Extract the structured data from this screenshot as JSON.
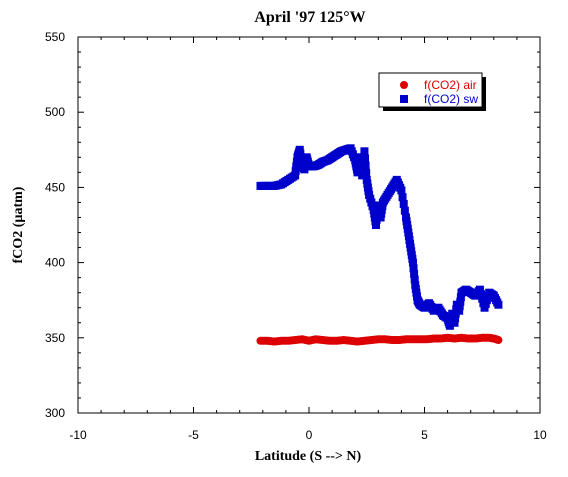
{
  "chart_data": {
    "type": "scatter",
    "title": "April '97 125°W",
    "xlabel": "Latitude (S --> N)",
    "ylabel": "fCO2 (µatm)",
    "xlim": [
      -10,
      10
    ],
    "ylim": [
      300,
      550
    ],
    "xticks": [
      -10,
      -5,
      0,
      5,
      10
    ],
    "yticks": [
      300,
      350,
      400,
      450,
      500,
      550
    ],
    "legend_position": "top-right",
    "series": [
      {
        "name": "f(CO2) air",
        "marker": "circle",
        "color": "#dd0000",
        "x": [
          -2.1,
          -1.8,
          -1.5,
          -1.2,
          -0.9,
          -0.6,
          -0.3,
          0.0,
          0.3,
          0.6,
          0.9,
          1.2,
          1.5,
          1.8,
          2.1,
          2.4,
          2.7,
          3.0,
          3.3,
          3.6,
          3.9,
          4.2,
          4.5,
          4.8,
          5.1,
          5.4,
          5.7,
          6.0,
          6.3,
          6.6,
          6.9,
          7.2,
          7.5,
          7.8,
          8.0,
          8.2
        ],
        "y": [
          348,
          348,
          347.5,
          348,
          348,
          348.5,
          349,
          348,
          349,
          348.5,
          348,
          348,
          348.5,
          348,
          347.5,
          348,
          348.5,
          349,
          349,
          348.5,
          348.5,
          349,
          349,
          349,
          349,
          349.5,
          349.5,
          350,
          349.5,
          350,
          349.5,
          349.5,
          350,
          350,
          349.5,
          348.5
        ]
      },
      {
        "name": "f(CO2) sw",
        "marker": "square",
        "color": "#0000cc",
        "x": [
          -2.1,
          -1.8,
          -1.5,
          -1.2,
          -0.9,
          -0.6,
          -0.5,
          -0.4,
          -0.3,
          -0.2,
          -0.1,
          0.0,
          0.2,
          0.4,
          0.6,
          0.8,
          1.0,
          1.2,
          1.4,
          1.6,
          1.8,
          2.0,
          2.1,
          2.2,
          2.3,
          2.4,
          2.5,
          2.6,
          2.8,
          2.9,
          3.0,
          3.1,
          3.2,
          3.4,
          3.6,
          3.8,
          4.0,
          4.2,
          4.3,
          4.4,
          4.5,
          4.6,
          4.7,
          4.8,
          5.0,
          5.2,
          5.4,
          5.6,
          5.8,
          6.0,
          6.1,
          6.2,
          6.3,
          6.4,
          6.5,
          6.6,
          6.8,
          7.0,
          7.2,
          7.4,
          7.6,
          7.8,
          8.0,
          8.2
        ],
        "y": [
          451,
          451,
          451,
          452,
          455,
          458,
          470,
          475,
          465,
          462,
          470,
          464,
          464,
          465,
          467,
          468,
          470,
          472,
          474,
          475,
          476,
          468,
          460,
          470,
          458,
          474,
          455,
          445,
          435,
          425,
          438,
          430,
          440,
          445,
          450,
          455,
          448,
          430,
          420,
          410,
          400,
          385,
          375,
          372,
          370,
          373,
          368,
          370,
          365,
          363,
          358,
          366,
          360,
          372,
          368,
          380,
          382,
          380,
          378,
          382,
          370,
          380,
          378,
          372
        ]
      }
    ]
  }
}
